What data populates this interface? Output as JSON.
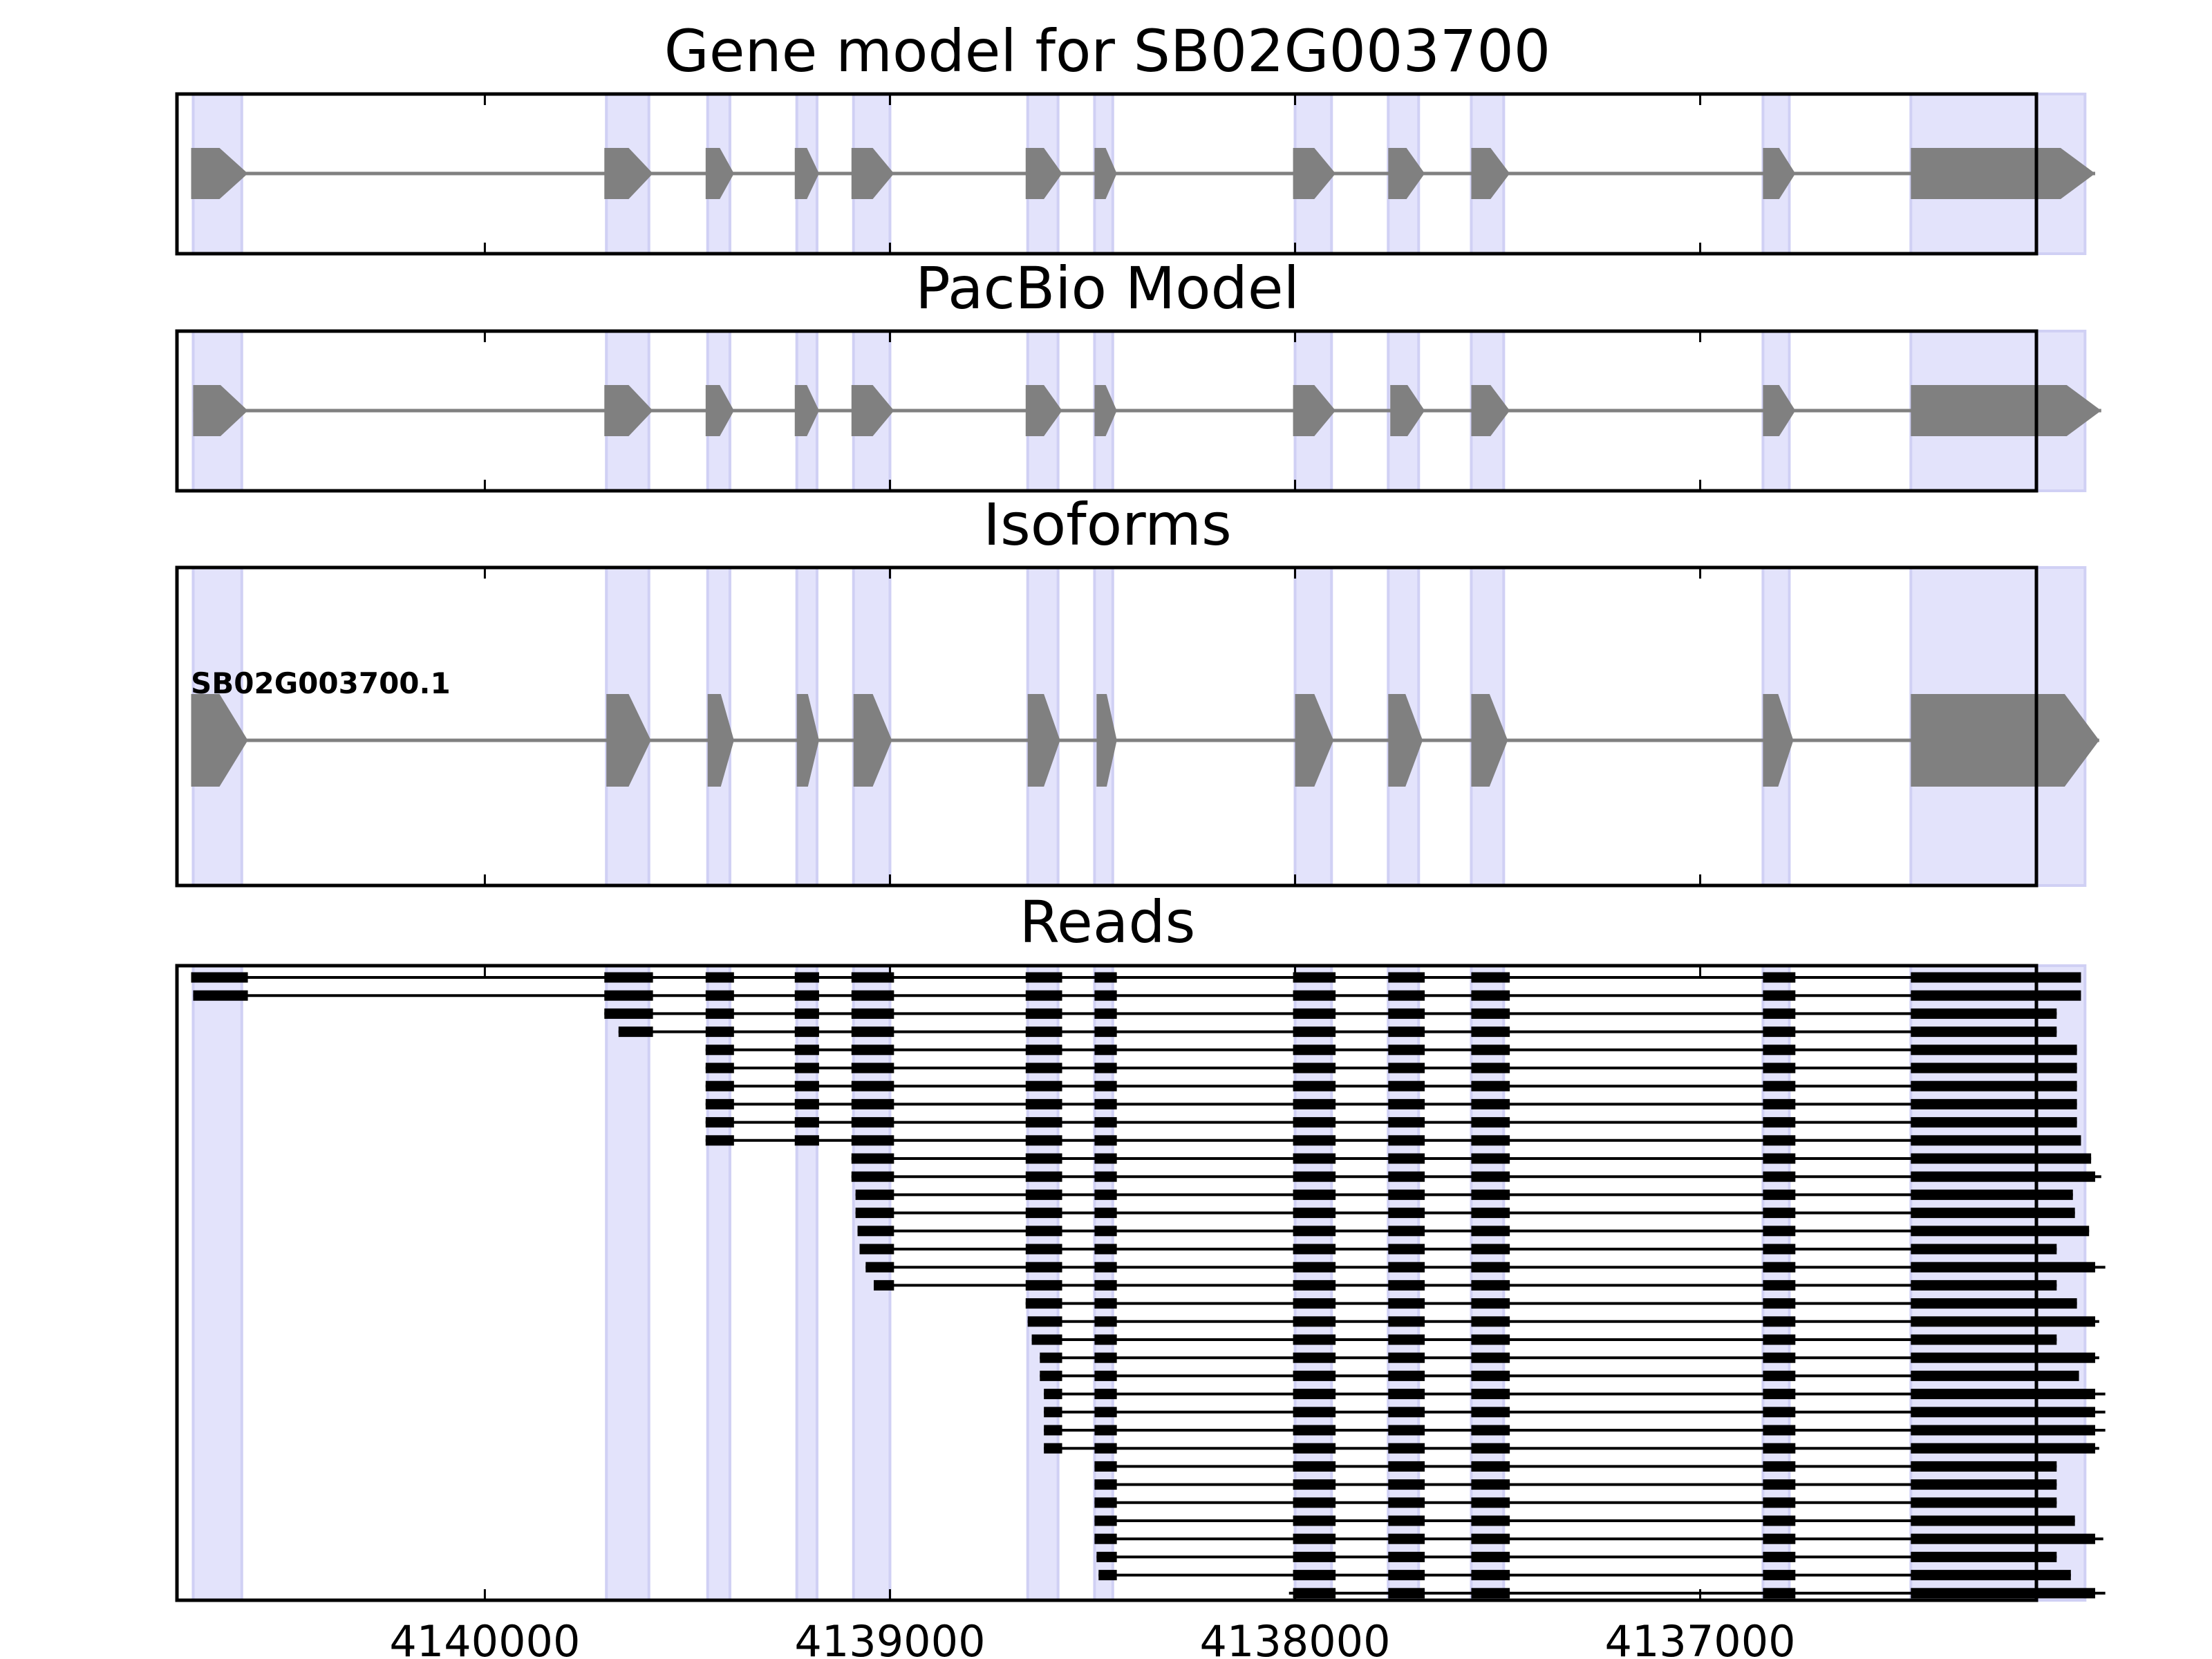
{
  "chart_data": {
    "type": "gene_model",
    "x_axis": {
      "lim": [
        4140760,
        4136170
      ],
      "ticks": [
        4140000,
        4139000,
        4138000,
        4137000
      ],
      "tick_labels": [
        "4140000",
        "4139000",
        "4138000",
        "4137000"
      ]
    },
    "colors": {
      "exon": "#808080",
      "intron": "#808080",
      "read": "#000000",
      "highlight": "#e3e3fb",
      "frame": "#000000"
    },
    "highlight_regions": [
      [
        4140720,
        4140600
      ],
      [
        4139700,
        4139595
      ],
      [
        4139450,
        4139395
      ],
      [
        4139230,
        4139180
      ],
      [
        4139090,
        4139000
      ],
      [
        4138660,
        4138585
      ],
      [
        4138495,
        4138450
      ],
      [
        4138000,
        4137910
      ],
      [
        4137770,
        4137695
      ],
      [
        4137565,
        4137485
      ],
      [
        4136845,
        4136780
      ],
      [
        4136480,
        4136050
      ]
    ],
    "panels": [
      {
        "id": "gene",
        "title": "Gene model for SB02G003700",
        "exons": [
          [
            4140725,
            4140585
          ],
          [
            4139705,
            4139585
          ],
          [
            4139455,
            4139385
          ],
          [
            4139235,
            4139175
          ],
          [
            4139095,
            4138990
          ],
          [
            4138665,
            4138575
          ],
          [
            4138495,
            4138440
          ],
          [
            4138005,
            4137900
          ],
          [
            4137770,
            4137680
          ],
          [
            4137565,
            4137470
          ],
          [
            4136845,
            4136765
          ],
          [
            4136480,
            4136025
          ]
        ]
      },
      {
        "id": "pacbio",
        "title": "PacBio Model",
        "exons": [
          [
            4140720,
            4140585
          ],
          [
            4139705,
            4139585
          ],
          [
            4139455,
            4139385
          ],
          [
            4139235,
            4139175
          ],
          [
            4139095,
            4138990
          ],
          [
            4138665,
            4138575
          ],
          [
            4138495,
            4138440
          ],
          [
            4138005,
            4137900
          ],
          [
            4137765,
            4137680
          ],
          [
            4137565,
            4137470
          ],
          [
            4136845,
            4136765
          ],
          [
            4136480,
            4136010
          ]
        ]
      },
      {
        "id": "isoforms",
        "title": "Isoforms",
        "isoforms": [
          {
            "name": "SB02G003700.1",
            "exons": [
              [
                4140725,
                4140585
              ],
              [
                4139700,
                4139590
              ],
              [
                4139450,
                4139385
              ],
              [
                4139230,
                4139175
              ],
              [
                4139090,
                4138995
              ],
              [
                4138660,
                4138580
              ],
              [
                4138490,
                4138440
              ],
              [
                4138000,
                4137905
              ],
              [
                4137770,
                4137685
              ],
              [
                4137565,
                4137475
              ],
              [
                4136845,
                4136770
              ],
              [
                4136480,
                4136015
              ]
            ]
          }
        ]
      },
      {
        "id": "reads",
        "title": "Reads",
        "reads": [
          {
            "start": 4140725,
            "end": 4136060
          },
          {
            "start": 4140720,
            "end": 4136060
          },
          {
            "start": 4139705,
            "end": 4136120
          },
          {
            "start": 4139670,
            "end": 4136120
          },
          {
            "start": 4139455,
            "end": 4136070
          },
          {
            "start": 4139455,
            "end": 4136070
          },
          {
            "start": 4139455,
            "end": 4136070
          },
          {
            "start": 4139455,
            "end": 4136070
          },
          {
            "start": 4139455,
            "end": 4136070
          },
          {
            "start": 4139455,
            "end": 4136060
          },
          {
            "start": 4139095,
            "end": 4136035
          },
          {
            "start": 4139095,
            "end": 4136010
          },
          {
            "start": 4139085,
            "end": 4136080
          },
          {
            "start": 4139085,
            "end": 4136075
          },
          {
            "start": 4139080,
            "end": 4136040
          },
          {
            "start": 4139075,
            "end": 4136120
          },
          {
            "start": 4139060,
            "end": 4136000
          },
          {
            "start": 4139040,
            "end": 4136120
          },
          {
            "start": 4138665,
            "end": 4136070
          },
          {
            "start": 4138660,
            "end": 4136015
          },
          {
            "start": 4138650,
            "end": 4136120
          },
          {
            "start": 4138630,
            "end": 4136015
          },
          {
            "start": 4138630,
            "end": 4136065
          },
          {
            "start": 4138620,
            "end": 4136000
          },
          {
            "start": 4138620,
            "end": 4136000
          },
          {
            "start": 4138620,
            "end": 4136000
          },
          {
            "start": 4138620,
            "end": 4136015
          },
          {
            "start": 4138495,
            "end": 4136120
          },
          {
            "start": 4138495,
            "end": 4136120
          },
          {
            "start": 4138495,
            "end": 4136120
          },
          {
            "start": 4138495,
            "end": 4136075
          },
          {
            "start": 4138495,
            "end": 4136005
          },
          {
            "start": 4138490,
            "end": 4136120
          },
          {
            "start": 4138485,
            "end": 4136085
          },
          {
            "start": 4138015,
            "end": 4136000
          }
        ]
      }
    ]
  }
}
